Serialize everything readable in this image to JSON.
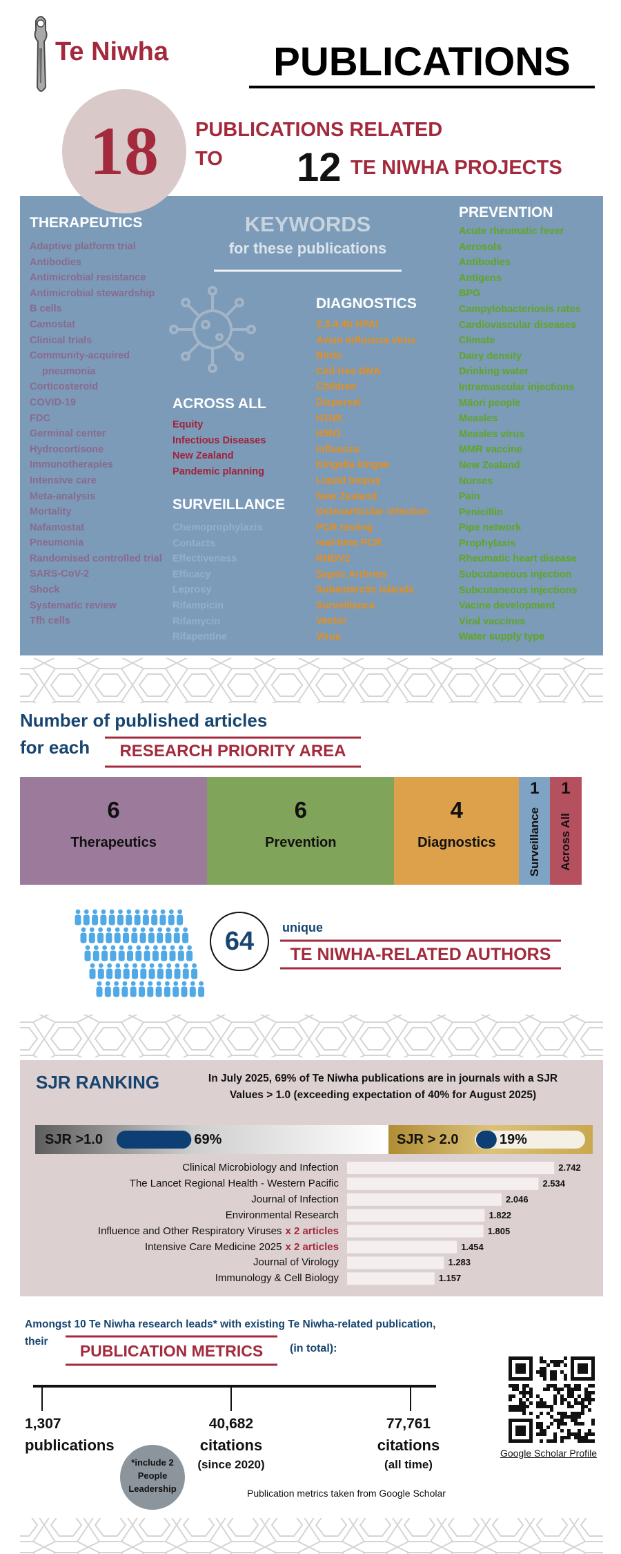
{
  "header": {
    "logo_text": "Te Niwha",
    "title": "PUBLICATIONS"
  },
  "summary": {
    "publications": 18,
    "text_line1": "PUBLICATIONS RELATED",
    "text_line2": "TO",
    "projects": 12,
    "projects_label": "TE NIWHA PROJECTS"
  },
  "keywords": {
    "title": "KEYWORDS",
    "subtitle": "for these publications",
    "groups": [
      {
        "name": "THERAPEUTICS",
        "items": [
          "Adaptive platform trial",
          "Antibodies",
          "Antimicrobial resistance",
          "Antimicrobial stewardship",
          "B cells",
          "Camostat",
          "Clinical trials",
          "Community-acquired pneumonia",
          "Corticosteroid",
          "COVID-19",
          "FDC",
          "Germinal center",
          "Hydrocortisone",
          "Immunotherapies",
          "Intensive care",
          "Meta-analysis",
          "Mortality",
          "Nafamostat",
          "Pneumonia",
          "Randomised controlled trial",
          "SARS-CoV-2",
          "Shock",
          "Systematic review",
          "Tfh cells"
        ]
      },
      {
        "name": "ACROSS ALL",
        "items": [
          "Equity",
          "Infectious Diseases",
          "New Zealand",
          "Pandemic planning"
        ]
      },
      {
        "name": "SURVEILLANCE",
        "items": [
          "Chemoprophylaxis",
          "Contacts",
          "Effectiveness",
          "Efficacy",
          "Leprosy",
          "Rifampicin",
          "Rifamycin",
          "Rifapentine"
        ]
      },
      {
        "name": "DIAGNOSTICS",
        "items": [
          "2.3.4.4b HPAI",
          "Avian influenza virus",
          "Birds",
          "Cell-free DNA",
          "Children",
          "Dispersal",
          "H1N9",
          "H5N1",
          "Influenza",
          "Kingella kingae",
          "Liquid biopsy",
          "New Zealand",
          "Osteoarticular infection",
          "PCR testing",
          "real-time PCR",
          "RHDV2",
          "Septic Arthritis",
          "Subantarctic islands",
          "Surveillance",
          "Vector",
          "Virus"
        ]
      },
      {
        "name": "PREVENTION",
        "items": [
          "Acute rheumatic fever",
          "Aerosols",
          "Antibodies",
          "Antigens",
          "BPG",
          "Campylobacteriosis rates",
          "Cardiovascular diseases",
          "Climate",
          "Dairy density",
          "Drinking water",
          "Intramuscular injections",
          "Māori people",
          "Measles",
          "Measles virus",
          "MMR vaccine",
          "New Zealand",
          "Nurses",
          "Pain",
          "Penicillin",
          "Pipe network",
          "Prophylaxis",
          "Rheumatic heart disease",
          "Subcutaneous injection",
          "Subcutaneous injections",
          "Vacine development",
          "Viral vaccines",
          "Water supply type"
        ]
      }
    ]
  },
  "research_areas": {
    "heading_line1": "Number of published articles",
    "heading_line2": "for each",
    "heading_highlight": "RESEARCH PRIORITY AREA",
    "areas": [
      {
        "name": "Therapeutics",
        "count": 6
      },
      {
        "name": "Prevention",
        "count": 6
      },
      {
        "name": "Diagnostics",
        "count": 4
      },
      {
        "name": "Surveillance",
        "count": 1
      },
      {
        "name": "Across All",
        "count": 1
      }
    ]
  },
  "authors": {
    "count": 64,
    "qualifier": "unique",
    "label": "TE NIWHA-RELATED AUTHORS"
  },
  "sjr": {
    "title": "SJR RANKING",
    "description_lines": [
      "In July 2025, 69% of Te Niwha publications are in journals with a SJR",
      "Values > 1.0 (exceeding expectation of 40% for August 2025)"
    ],
    "gauges": [
      {
        "label": "SJR >1.0",
        "value": 69,
        "value_label": "69%"
      },
      {
        "label": "SJR > 2.0",
        "value": 19,
        "value_label": "19%"
      }
    ],
    "journals": [
      {
        "name": "Clinical Microbiology and Infection",
        "value": 2.742
      },
      {
        "name": "The Lancet Regional Health - Western Pacific",
        "value": 2.534
      },
      {
        "name": "Journal of Infection",
        "value": 2.046
      },
      {
        "name": "Environmental Research",
        "value": 1.822
      },
      {
        "name": "Influence and Other Respiratory Viruses",
        "note": "x 2 articles",
        "value": 1.805
      },
      {
        "name": "Intensive Care Medicine 2025",
        "note": "x 2 articles",
        "value": 1.454
      },
      {
        "name": "Journal of Virology",
        "value": 1.283
      },
      {
        "name": "Immunology & Cell Biology",
        "value": 1.157
      }
    ]
  },
  "metrics": {
    "intro_line1": "Amongst 10 Te Niwha research leads* with existing Te Niwha-related publication,",
    "intro_line2": "their",
    "highlight": "PUBLICATION METRICS",
    "suffix": "(in total):",
    "items": [
      {
        "value": "1,307",
        "label": "publications"
      },
      {
        "value": "40,682",
        "label": "citations",
        "period": "(since 2020)"
      },
      {
        "value": "77,761",
        "label": "citations",
        "period": "(all time)"
      }
    ],
    "footnote": "*include 2 People Leadership",
    "source": "Publication metrics taken from Google Scholar",
    "link": "Google Scholar Profile"
  }
}
